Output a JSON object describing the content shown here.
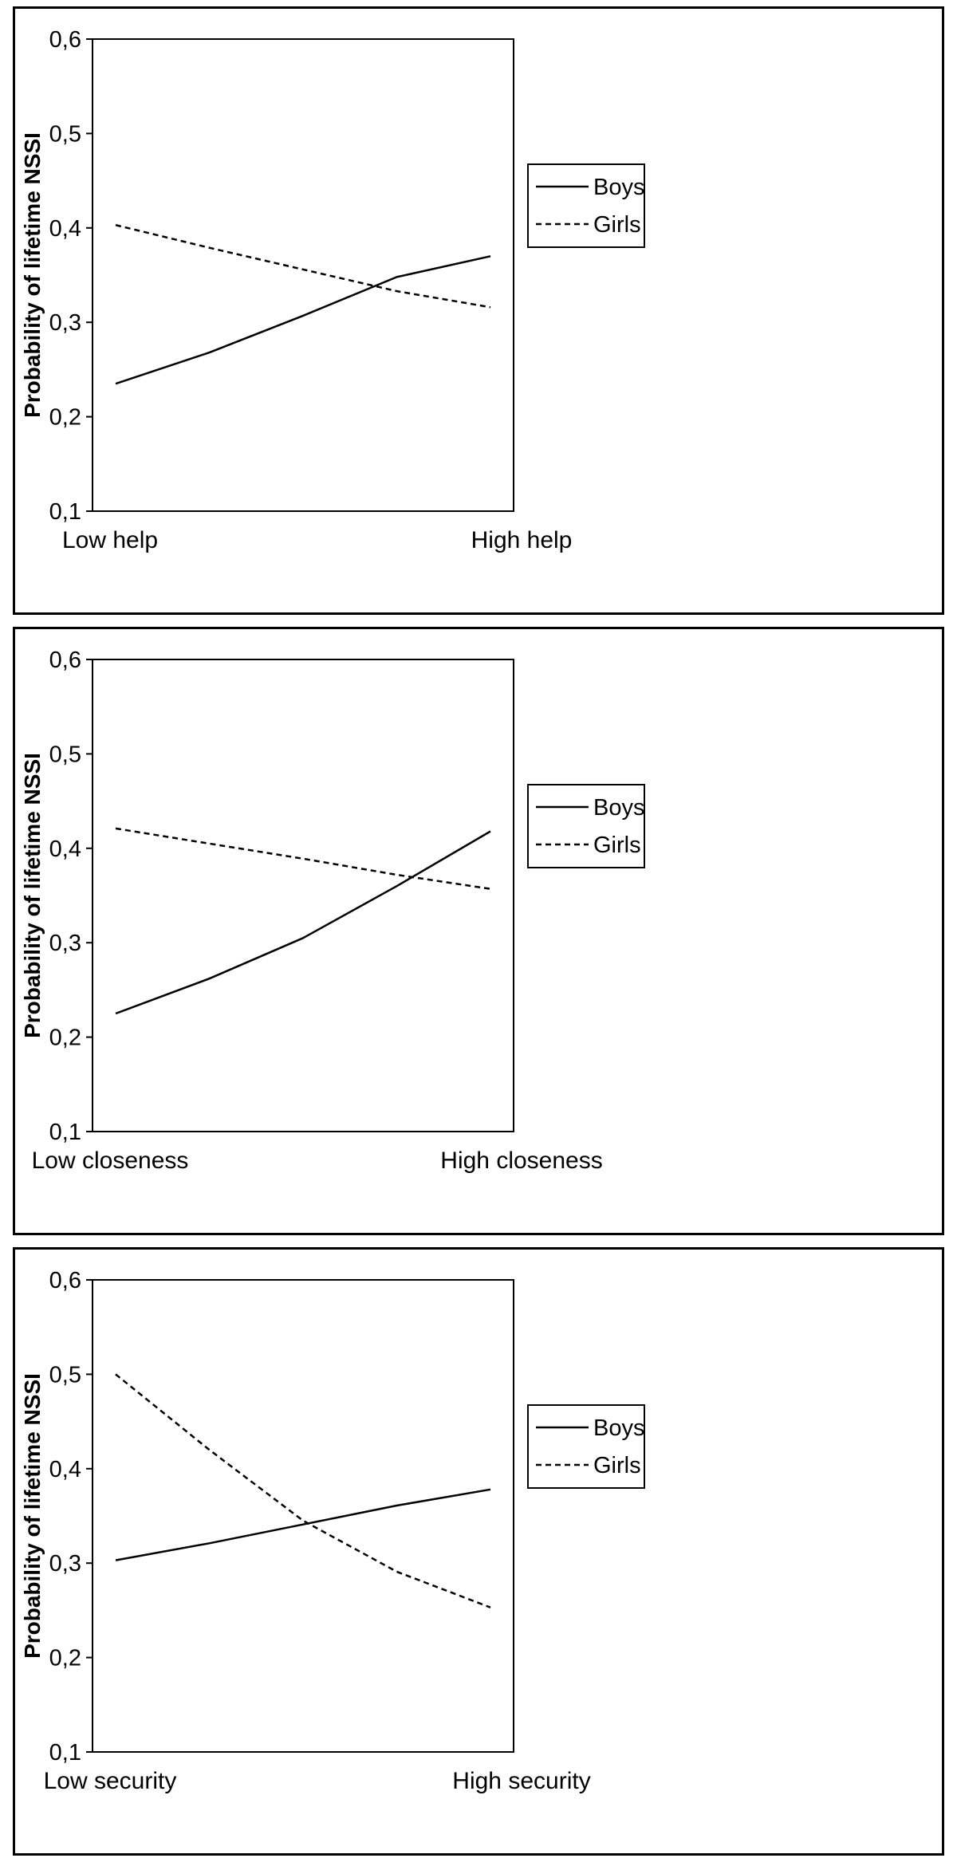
{
  "chart_data": [
    {
      "type": "line",
      "ylabel": "Probability of lifetime NSSI",
      "xlabel": "",
      "categories": [
        "Low help",
        "High help"
      ],
      "x": [
        0,
        0.25,
        0.5,
        0.75,
        1
      ],
      "ylim": [
        0.1,
        0.6
      ],
      "yticks": [
        "0,1",
        "0,2",
        "0,3",
        "0,4",
        "0,5",
        "0,6"
      ],
      "series": [
        {
          "name": "Boys",
          "style": "solid",
          "values": [
            0.235,
            0.268,
            0.307,
            0.348,
            0.37
          ]
        },
        {
          "name": "Girls",
          "style": "dashed",
          "values": [
            0.403,
            0.379,
            0.356,
            0.333,
            0.316
          ]
        }
      ],
      "legend": "right",
      "grid": false
    },
    {
      "type": "line",
      "ylabel": "Probability of lifetime NSSI",
      "xlabel": "",
      "categories": [
        "Low closeness",
        "High closeness"
      ],
      "x": [
        0,
        0.25,
        0.5,
        0.75,
        1
      ],
      "ylim": [
        0.1,
        0.6
      ],
      "yticks": [
        "0,1",
        "0,2",
        "0,3",
        "0,4",
        "0,5",
        "0,6"
      ],
      "series": [
        {
          "name": "Boys",
          "style": "solid",
          "values": [
            0.225,
            0.262,
            0.305,
            0.36,
            0.418
          ]
        },
        {
          "name": "Girls",
          "style": "dashed",
          "values": [
            0.421,
            0.405,
            0.389,
            0.372,
            0.357
          ]
        }
      ],
      "legend": "right",
      "grid": false
    },
    {
      "type": "line",
      "ylabel": "Probability of lifetime NSSI",
      "xlabel": "",
      "categories": [
        "Low security",
        "High security"
      ],
      "x": [
        0,
        0.25,
        0.5,
        0.75,
        1
      ],
      "ylim": [
        0.1,
        0.6
      ],
      "yticks": [
        "0,1",
        "0,2",
        "0,3",
        "0,4",
        "0,5",
        "0,6"
      ],
      "series": [
        {
          "name": "Boys",
          "style": "solid",
          "values": [
            0.303,
            0.321,
            0.341,
            0.361,
            0.378
          ]
        },
        {
          "name": "Girls",
          "style": "dashed",
          "values": [
            0.5,
            0.42,
            0.345,
            0.291,
            0.253
          ]
        }
      ],
      "legend": "right",
      "grid": false
    }
  ]
}
